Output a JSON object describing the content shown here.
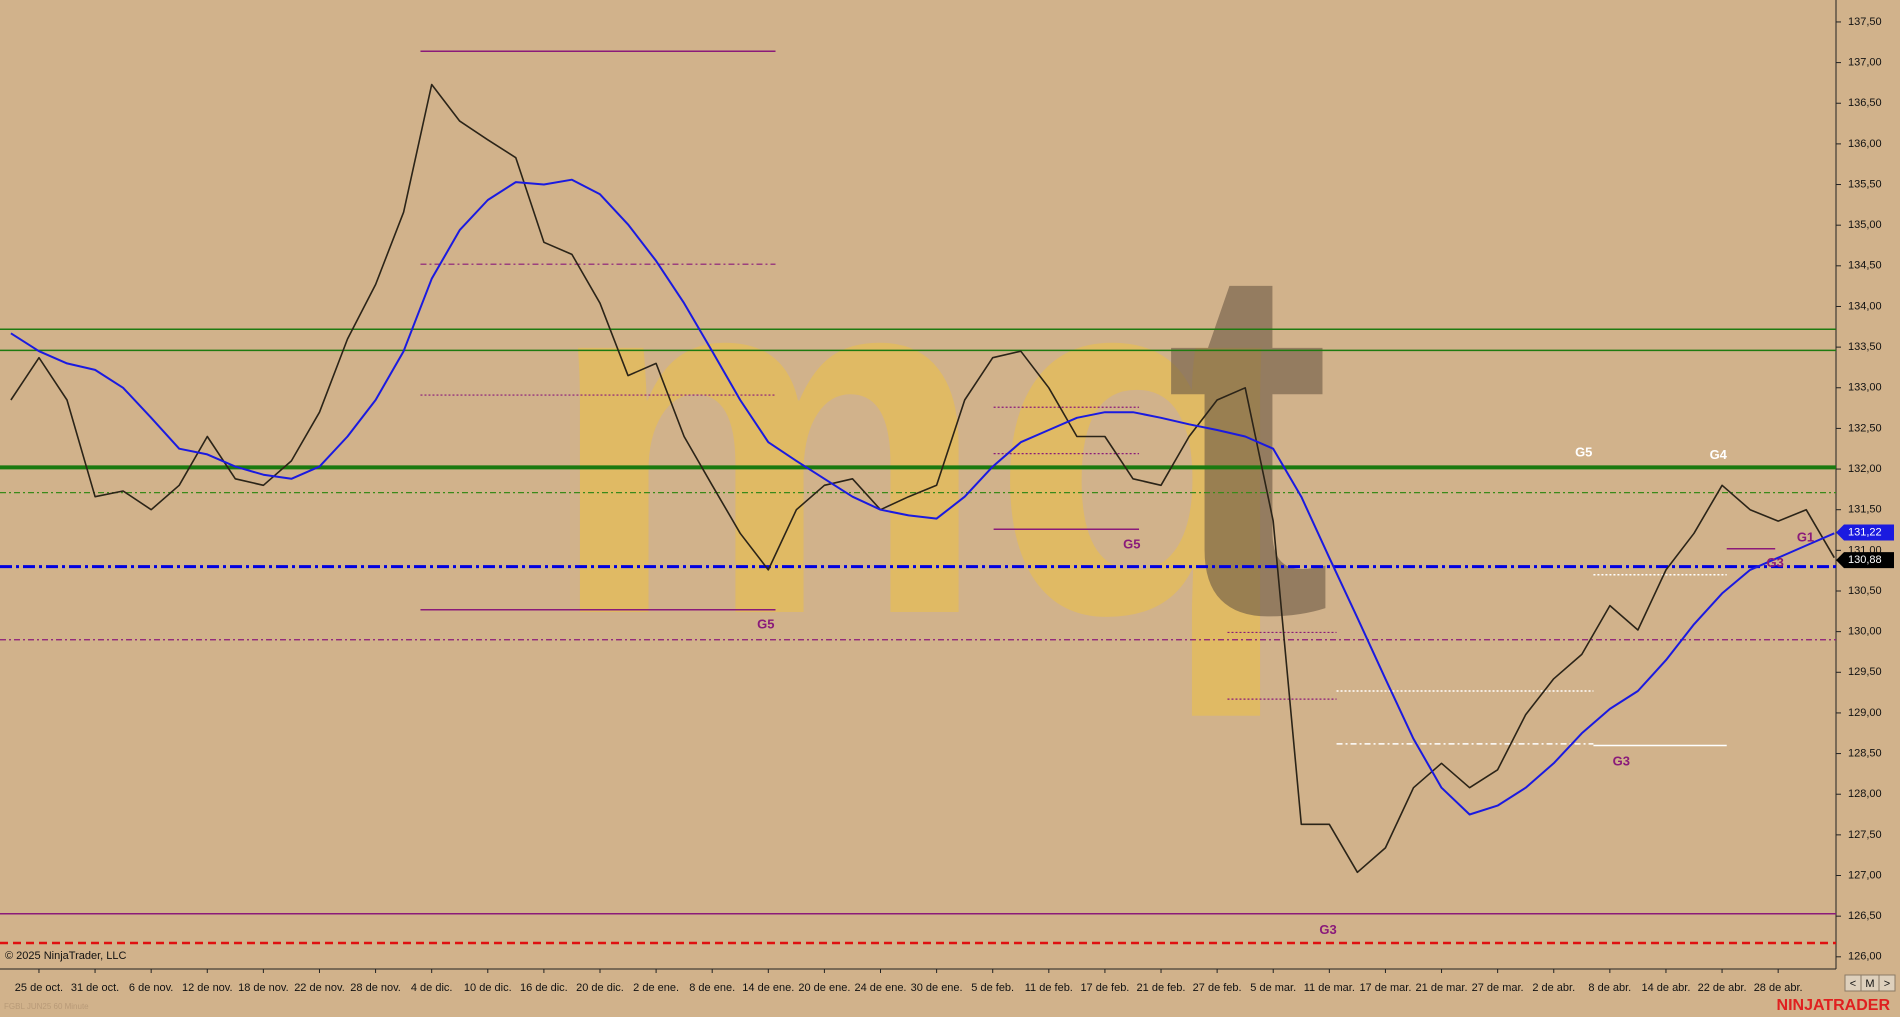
{
  "chart_data": {
    "type": "line",
    "instrument_caption": "FGBL JUN25 60 Minute",
    "copyright": "© 2025 NinjaTrader, LLC",
    "brand": "NINJATRADER",
    "watermark": [
      "mq",
      "t"
    ],
    "nav_buttons": [
      "<",
      "M",
      ">"
    ],
    "categories": [
      null,
      "25 de oct.",
      null,
      "31 de oct.",
      null,
      "6 de nov.",
      null,
      "12 de nov.",
      null,
      "18 de nov.",
      null,
      "22 de nov.",
      null,
      "28 de nov.",
      null,
      "4 de dic.",
      null,
      "10 de dic.",
      null,
      "16 de dic.",
      null,
      "20 de dic.",
      null,
      "2 de ene.",
      null,
      "8 de ene.",
      null,
      "14 de ene.",
      null,
      "20 de ene.",
      null,
      "24 de ene.",
      null,
      "30 de ene.",
      null,
      "5 de feb.",
      null,
      "11 de feb.",
      null,
      "17 de feb.",
      null,
      "21 de feb.",
      null,
      "27 de feb.",
      null,
      "5 de mar.",
      null,
      "11 de mar.",
      null,
      "17 de mar.",
      null,
      "21 de mar.",
      null,
      "27 de mar.",
      null,
      "2 de abr.",
      null,
      "8 de abr.",
      null,
      "14 de abr.",
      null,
      "22 de abr.",
      null,
      "28 de abr.",
      null,
      null
    ],
    "series": [
      {
        "color": "#2b2418",
        "width": 1.6,
        "values": [
          132.85,
          133.37,
          132.85,
          131.66,
          131.73,
          131.5,
          131.8,
          132.4,
          131.88,
          131.8,
          132.1,
          132.7,
          133.6,
          134.27,
          135.16,
          136.73,
          136.28,
          136.05,
          135.83,
          134.79,
          134.64,
          134.04,
          133.15,
          133.3,
          132.4,
          131.8,
          131.21,
          130.76,
          131.5,
          131.8,
          131.88,
          131.5,
          131.66,
          131.8,
          132.85,
          133.37,
          133.45,
          133.0,
          132.4,
          132.4,
          131.88,
          131.8,
          132.4,
          132.85,
          133.0,
          131.36,
          127.63,
          127.63,
          127.04,
          127.34,
          128.08,
          128.38,
          128.08,
          128.3,
          128.98,
          129.42,
          129.72,
          130.32,
          130.02,
          130.76,
          131.21,
          131.8,
          131.5,
          131.36,
          131.5,
          130.91
        ]
      },
      {
        "color": "#1a1ae0",
        "width": 2,
        "values": [
          133.67,
          133.45,
          133.3,
          133.22,
          133.0,
          132.63,
          132.25,
          132.18,
          132.03,
          131.93,
          131.88,
          132.03,
          132.4,
          132.85,
          133.45,
          134.34,
          134.94,
          135.31,
          135.53,
          135.5,
          135.56,
          135.38,
          135.01,
          134.56,
          134.04,
          133.45,
          132.85,
          132.33,
          132.1,
          131.88,
          131.66,
          131.5,
          131.43,
          131.39,
          131.66,
          132.03,
          132.33,
          132.48,
          132.63,
          132.7,
          132.7,
          132.63,
          132.55,
          132.48,
          132.4,
          132.25,
          131.66,
          130.91,
          130.17,
          129.42,
          128.68,
          128.08,
          127.75,
          127.86,
          128.08,
          128.38,
          128.75,
          129.05,
          129.27,
          129.65,
          130.09,
          130.47,
          130.76,
          130.91,
          131.06,
          131.21
        ]
      }
    ],
    "ylim": [
      125.85,
      137.77
    ],
    "yticks": [
      {
        "value": 126.0,
        "label": "126,00"
      },
      {
        "value": 126.5,
        "label": "126,50"
      },
      {
        "value": 127.0,
        "label": "127,00"
      },
      {
        "value": 127.5,
        "label": "127,50"
      },
      {
        "value": 128.0,
        "label": "128,00"
      },
      {
        "value": 128.5,
        "label": "128,50"
      },
      {
        "value": 129.0,
        "label": "129,00"
      },
      {
        "value": 129.5,
        "label": "129,50"
      },
      {
        "value": 130.0,
        "label": "130,00"
      },
      {
        "value": 130.5,
        "label": "130,50"
      },
      {
        "value": 131.0,
        "label": "131,00"
      },
      {
        "value": 131.5,
        "label": "131,50"
      },
      {
        "value": 132.0,
        "label": "132,00"
      },
      {
        "value": 132.5,
        "label": "132,50"
      },
      {
        "value": 133.0,
        "label": "133,00"
      },
      {
        "value": 133.5,
        "label": "133,50"
      },
      {
        "value": 134.0,
        "label": "134,00"
      },
      {
        "value": 134.5,
        "label": "134,50"
      },
      {
        "value": 135.0,
        "label": "135,00"
      },
      {
        "value": 135.5,
        "label": "135,50"
      },
      {
        "value": 136.0,
        "label": "136,00"
      },
      {
        "value": 136.5,
        "label": "136,50"
      },
      {
        "value": 137.0,
        "label": "137,00"
      },
      {
        "value": 137.5,
        "label": "137,50"
      }
    ],
    "levels": [
      {
        "value": 133.72,
        "color": "#1e7a10",
        "dash": "none",
        "width": 1.5
      },
      {
        "value": 133.46,
        "color": "#1e7a10",
        "dash": "none",
        "width": 1.5
      },
      {
        "value": 132.02,
        "color": "#1a7a10",
        "dash": "none",
        "width": 4
      },
      {
        "value": 131.71,
        "color": "#3a8a1a",
        "dash": "6 3 2 3",
        "width": 1.2
      },
      {
        "value": 130.8,
        "color": "#0000e0",
        "dash": "12 4 3 4",
        "width": 3
      },
      {
        "value": 129.9,
        "color": "#8a1a7a",
        "dash": "6 3 2 3",
        "width": 1.2
      },
      {
        "value": 126.53,
        "color": "#8a1a7a",
        "dash": "none",
        "width": 1.5
      },
      {
        "value": 126.17,
        "color": "#e01010",
        "dash": "8 5",
        "width": 2.5
      },
      {
        "value": 137.14,
        "color": "#8a1a7a",
        "dash": "none",
        "width": 1.5
      },
      {
        "value": 134.52,
        "color": "#8a1a7a",
        "dash": "6 3 2 3",
        "width": 1.2
      },
      {
        "value": 132.91,
        "color": "#8a1a7a",
        "dash": "2 2",
        "width": 1.2
      },
      {
        "value": 130.27,
        "color": "#8a1a7a",
        "dash": "none",
        "width": 1.5
      },
      {
        "value": 131.26,
        "color": "#8a1a7a",
        "dash": "none",
        "width": 1.5
      },
      {
        "value": 132.76,
        "color": "#8a1a7a",
        "dash": "2 2",
        "width": 1.2
      },
      {
        "value": 132.19,
        "color": "#8a1a7a",
        "dash": "2 2",
        "width": 1.2
      },
      {
        "value": 129.99,
        "color": "#8a1a7a",
        "dash": "2 2",
        "width": 1.2
      },
      {
        "value": 129.17,
        "color": "#8a1a7a",
        "dash": "2 2",
        "width": 1.2
      },
      {
        "value": 129.27,
        "color": "#ffffff",
        "dash": "2 2",
        "width": 1.5
      },
      {
        "value": 128.62,
        "color": "#ffffff",
        "dash": "6 3 2 3",
        "width": 1.5
      },
      {
        "value": 128.6,
        "color": "#ffffff",
        "dash": "none",
        "width": 1.5
      },
      {
        "value": 130.7,
        "color": "#ffffff",
        "dash": "2 2",
        "width": 1.5
      },
      {
        "value": 131.02,
        "color": "#8a1a7a",
        "dash": "none",
        "width": 1.5
      }
    ],
    "annotations": [
      {
        "text": "G5",
        "color": "#8a1a7a"
      },
      {
        "text": "G5",
        "color": "#8a1a7a"
      },
      {
        "text": "G3",
        "color": "#8a1a7a"
      },
      {
        "text": "G5",
        "color": "#ffffff"
      },
      {
        "text": "G4",
        "color": "#ffffff"
      },
      {
        "text": "G3",
        "color": "#8a1a7a"
      },
      {
        "text": "G3",
        "color": "#8a1a7a"
      },
      {
        "text": "G1",
        "color": "#8a1a7a"
      }
    ],
    "price_badges": [
      {
        "value": 131.22,
        "label": "131,22",
        "color": "#1a1ae0"
      },
      {
        "value": 130.88,
        "label": "130,88",
        "color": "#000000"
      }
    ]
  }
}
